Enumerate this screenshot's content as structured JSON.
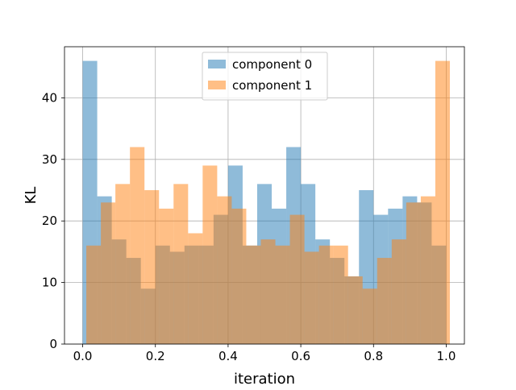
{
  "chart_data": {
    "type": "histogram",
    "xlabel": "iteration",
    "ylabel": "KL",
    "xlim": [
      -0.05,
      1.05
    ],
    "ylim": [
      0,
      48.3
    ],
    "x_ticks": [
      0.0,
      0.2,
      0.4,
      0.6,
      0.8,
      1.0
    ],
    "x_tick_labels": [
      "0.0",
      "0.2",
      "0.4",
      "0.6",
      "0.8",
      "1.0"
    ],
    "y_ticks": [
      0,
      10,
      20,
      30,
      40
    ],
    "y_tick_labels": [
      "0",
      "10",
      "20",
      "30",
      "40"
    ],
    "grid": true,
    "legend_position": "top-center",
    "series": [
      {
        "name": "component 0",
        "color": "#1f77b4",
        "alpha": 0.5,
        "bin_start": 0.0,
        "bin_width": 0.04,
        "values": [
          46,
          24,
          17,
          14,
          9,
          16,
          15,
          16,
          16,
          21,
          29,
          16,
          26,
          22,
          32,
          26,
          17,
          14,
          11,
          25,
          21,
          22,
          24,
          23,
          16
        ]
      },
      {
        "name": "component 1",
        "color": "#ff7f0e",
        "alpha": 0.5,
        "bin_start": 0.01,
        "bin_width": 0.04,
        "values": [
          16,
          23,
          26,
          32,
          25,
          22,
          26,
          18,
          29,
          24,
          22,
          16,
          17,
          16,
          21,
          15,
          16,
          16,
          11,
          9,
          14,
          17,
          23,
          24,
          46
        ]
      }
    ]
  }
}
